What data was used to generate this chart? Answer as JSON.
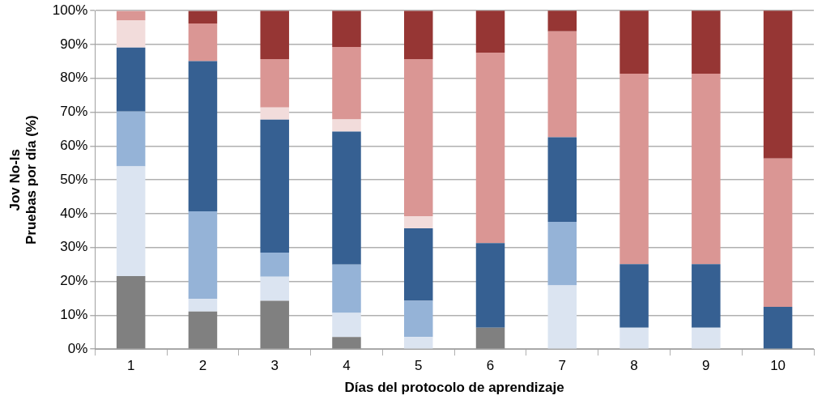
{
  "chart_data": {
    "type": "bar",
    "stacked": true,
    "xlabel": "Días del protocolo de aprendizaje",
    "ylabel": "Jov No-Is\nPruebas por día (%)",
    "categories": [
      "1",
      "2",
      "3",
      "4",
      "5",
      "6",
      "7",
      "8",
      "9",
      "10"
    ],
    "series": [
      {
        "color": "#808080",
        "values": [
          21.6,
          11.1,
          14.3,
          3.6,
          0,
          6.3,
          0,
          0,
          0,
          0
        ]
      },
      {
        "color": "#dbe4f1",
        "values": [
          32.4,
          3.7,
          7.1,
          7.1,
          3.6,
          0,
          18.8,
          6.3,
          6.3,
          0
        ]
      },
      {
        "color": "#95b3d7",
        "values": [
          16.2,
          25.9,
          7.1,
          14.3,
          10.7,
          0,
          18.8,
          0,
          0,
          0
        ]
      },
      {
        "color": "#366092",
        "values": [
          18.9,
          44.4,
          39.3,
          39.3,
          21.4,
          25,
          25,
          18.8,
          18.8,
          12.5
        ]
      },
      {
        "color": "#f2dcdb",
        "values": [
          8.1,
          0,
          3.6,
          3.6,
          3.6,
          0,
          0,
          0,
          0,
          0
        ]
      },
      {
        "color": "#da9694",
        "values": [
          2.7,
          11.1,
          14.3,
          21.4,
          46.4,
          56.3,
          31.3,
          56.3,
          56.3,
          43.8
        ]
      },
      {
        "color": "#963634",
        "values": [
          0,
          3.7,
          14.3,
          10.7,
          14.3,
          12.5,
          6.3,
          18.8,
          18.8,
          43.8
        ]
      }
    ],
    "ylim": [
      0,
      100
    ],
    "yticks": [
      {
        "value": 0,
        "label": "0%"
      },
      {
        "value": 10,
        "label": "10%"
      },
      {
        "value": 20,
        "label": "20%"
      },
      {
        "value": 30,
        "label": "30%"
      },
      {
        "value": 40,
        "label": "40%"
      },
      {
        "value": 50,
        "label": "50%"
      },
      {
        "value": 60,
        "label": "60%"
      },
      {
        "value": 70,
        "label": "70%"
      },
      {
        "value": 80,
        "label": "80%"
      },
      {
        "value": 90,
        "label": "90%"
      },
      {
        "value": 100,
        "label": "100%"
      }
    ],
    "grid": "y",
    "legend": false
  }
}
